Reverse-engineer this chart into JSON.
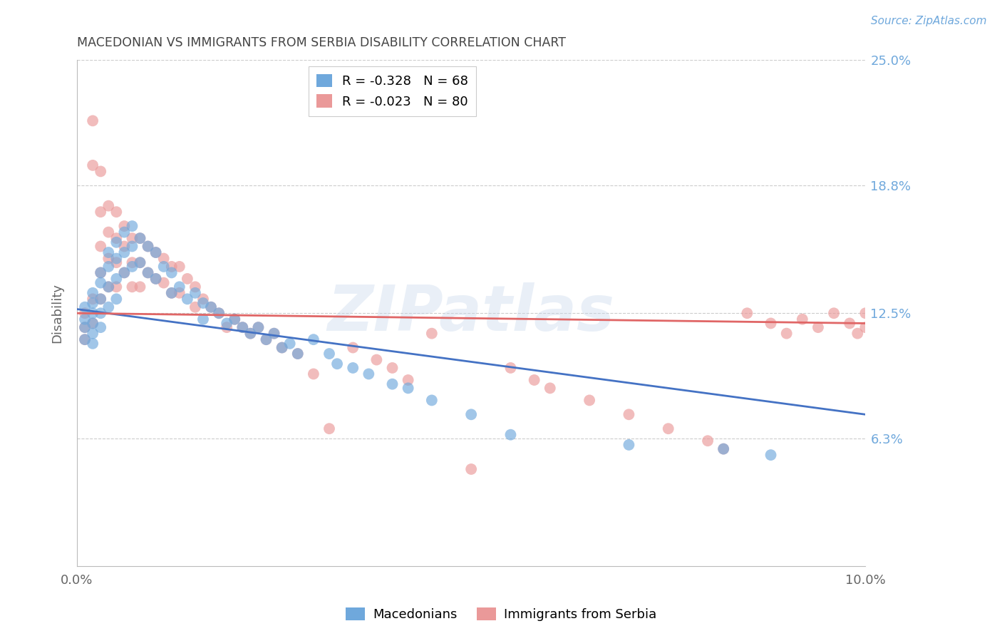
{
  "title": "MACEDONIAN VS IMMIGRANTS FROM SERBIA DISABILITY CORRELATION CHART",
  "source": "Source: ZipAtlas.com",
  "ylabel": "Disability",
  "watermark": "ZIPatlas",
  "xlim": [
    0.0,
    0.1
  ],
  "ylim": [
    0.0,
    0.25
  ],
  "xtick_labels": [
    "0.0%",
    "10.0%"
  ],
  "ytick_labels": [
    "25.0%",
    "18.8%",
    "12.5%",
    "6.3%"
  ],
  "ytick_values": [
    0.25,
    0.188,
    0.125,
    0.063
  ],
  "macedonian_R": -0.328,
  "macedonian_N": 68,
  "serbia_R": -0.023,
  "serbia_N": 80,
  "legend_label_1": "Macedonians",
  "legend_label_2": "Immigrants from Serbia",
  "blue_color": "#6fa8dc",
  "pink_color": "#ea9999",
  "line_blue": "#4472c4",
  "line_pink": "#e06666",
  "title_color": "#444444",
  "axis_label_color": "#666666",
  "right_label_color": "#6fa8dc",
  "grid_color": "#cccccc",
  "background_color": "#ffffff",
  "macedonian_x": [
    0.001,
    0.001,
    0.001,
    0.001,
    0.002,
    0.002,
    0.002,
    0.002,
    0.002,
    0.002,
    0.003,
    0.003,
    0.003,
    0.003,
    0.003,
    0.004,
    0.004,
    0.004,
    0.004,
    0.005,
    0.005,
    0.005,
    0.005,
    0.006,
    0.006,
    0.006,
    0.007,
    0.007,
    0.007,
    0.008,
    0.008,
    0.009,
    0.009,
    0.01,
    0.01,
    0.011,
    0.012,
    0.012,
    0.013,
    0.014,
    0.015,
    0.016,
    0.016,
    0.017,
    0.018,
    0.019,
    0.02,
    0.021,
    0.022,
    0.023,
    0.024,
    0.025,
    0.026,
    0.027,
    0.028,
    0.03,
    0.032,
    0.033,
    0.035,
    0.037,
    0.04,
    0.042,
    0.045,
    0.05,
    0.055,
    0.07,
    0.082,
    0.088
  ],
  "macedonian_y": [
    0.128,
    0.122,
    0.118,
    0.112,
    0.135,
    0.13,
    0.125,
    0.12,
    0.115,
    0.11,
    0.145,
    0.14,
    0.132,
    0.125,
    0.118,
    0.155,
    0.148,
    0.138,
    0.128,
    0.16,
    0.152,
    0.142,
    0.132,
    0.165,
    0.155,
    0.145,
    0.168,
    0.158,
    0.148,
    0.162,
    0.15,
    0.158,
    0.145,
    0.155,
    0.142,
    0.148,
    0.145,
    0.135,
    0.138,
    0.132,
    0.135,
    0.13,
    0.122,
    0.128,
    0.125,
    0.12,
    0.122,
    0.118,
    0.115,
    0.118,
    0.112,
    0.115,
    0.108,
    0.11,
    0.105,
    0.112,
    0.105,
    0.1,
    0.098,
    0.095,
    0.09,
    0.088,
    0.082,
    0.075,
    0.065,
    0.06,
    0.058,
    0.055
  ],
  "serbia_x": [
    0.001,
    0.001,
    0.001,
    0.002,
    0.002,
    0.002,
    0.002,
    0.003,
    0.003,
    0.003,
    0.003,
    0.003,
    0.004,
    0.004,
    0.004,
    0.004,
    0.005,
    0.005,
    0.005,
    0.005,
    0.006,
    0.006,
    0.006,
    0.007,
    0.007,
    0.007,
    0.008,
    0.008,
    0.008,
    0.009,
    0.009,
    0.01,
    0.01,
    0.011,
    0.011,
    0.012,
    0.012,
    0.013,
    0.013,
    0.014,
    0.015,
    0.015,
    0.016,
    0.017,
    0.018,
    0.019,
    0.02,
    0.021,
    0.022,
    0.023,
    0.024,
    0.025,
    0.026,
    0.028,
    0.03,
    0.032,
    0.035,
    0.038,
    0.04,
    0.042,
    0.045,
    0.05,
    0.055,
    0.058,
    0.06,
    0.065,
    0.07,
    0.075,
    0.08,
    0.082,
    0.085,
    0.088,
    0.09,
    0.092,
    0.094,
    0.096,
    0.098,
    0.099,
    0.1,
    0.1
  ],
  "serbia_y": [
    0.125,
    0.118,
    0.112,
    0.22,
    0.198,
    0.132,
    0.12,
    0.195,
    0.175,
    0.158,
    0.145,
    0.132,
    0.178,
    0.165,
    0.152,
    0.138,
    0.175,
    0.162,
    0.15,
    0.138,
    0.168,
    0.158,
    0.145,
    0.162,
    0.15,
    0.138,
    0.162,
    0.15,
    0.138,
    0.158,
    0.145,
    0.155,
    0.142,
    0.152,
    0.14,
    0.148,
    0.135,
    0.148,
    0.135,
    0.142,
    0.138,
    0.128,
    0.132,
    0.128,
    0.125,
    0.118,
    0.122,
    0.118,
    0.115,
    0.118,
    0.112,
    0.115,
    0.108,
    0.105,
    0.095,
    0.068,
    0.108,
    0.102,
    0.098,
    0.092,
    0.115,
    0.048,
    0.098,
    0.092,
    0.088,
    0.082,
    0.075,
    0.068,
    0.062,
    0.058,
    0.125,
    0.12,
    0.115,
    0.122,
    0.118,
    0.125,
    0.12,
    0.115,
    0.125,
    0.118
  ]
}
